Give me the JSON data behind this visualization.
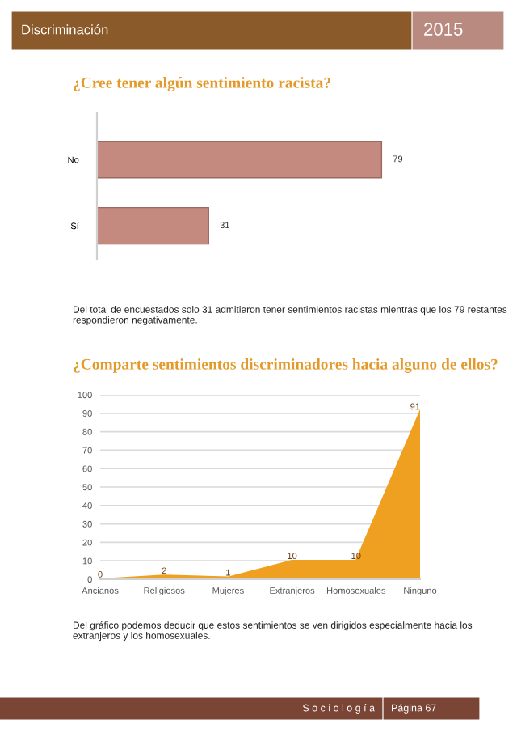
{
  "chart_data": [
    {
      "type": "bar",
      "orientation": "horizontal",
      "title": "¿Cree tener algún sentimiento racista?",
      "categories": [
        "No",
        "Sí"
      ],
      "values": [
        79,
        31
      ],
      "color": "#c48a80",
      "data_labels": true,
      "tick_labels": "y",
      "grid": false,
      "legend": false,
      "annotations": [
        "Discriminación",
        "2015",
        "Del total de encuestados solo 31 admitieron tener sentimientos racistas mientras que los 79 restantes respondieron negativamente."
      ]
    },
    {
      "type": "area",
      "title": "¿Comparte sentimientos discriminadores hacia alguno de ellos?",
      "categories": [
        "Ancianos",
        "Religiosos",
        "Mujeres",
        "Extranjeros",
        "Homosexuales",
        "Ninguno"
      ],
      "values": [
        0,
        2,
        1,
        10,
        10,
        91
      ],
      "color": "#f0a020",
      "data_labels": true,
      "ylim": [
        0,
        100
      ],
      "yticks": [
        0,
        10,
        20,
        30,
        40,
        50,
        60,
        70,
        80,
        90,
        100
      ],
      "grid": "y",
      "legend": false,
      "annotations": [
        "Del gráfico podemos deducir que estos sentimientos se ven dirigidos especialmente hacia los extranjeros y los homosexuales.",
        "S o c i o l o g í a",
        "Página 67"
      ]
    }
  ]
}
